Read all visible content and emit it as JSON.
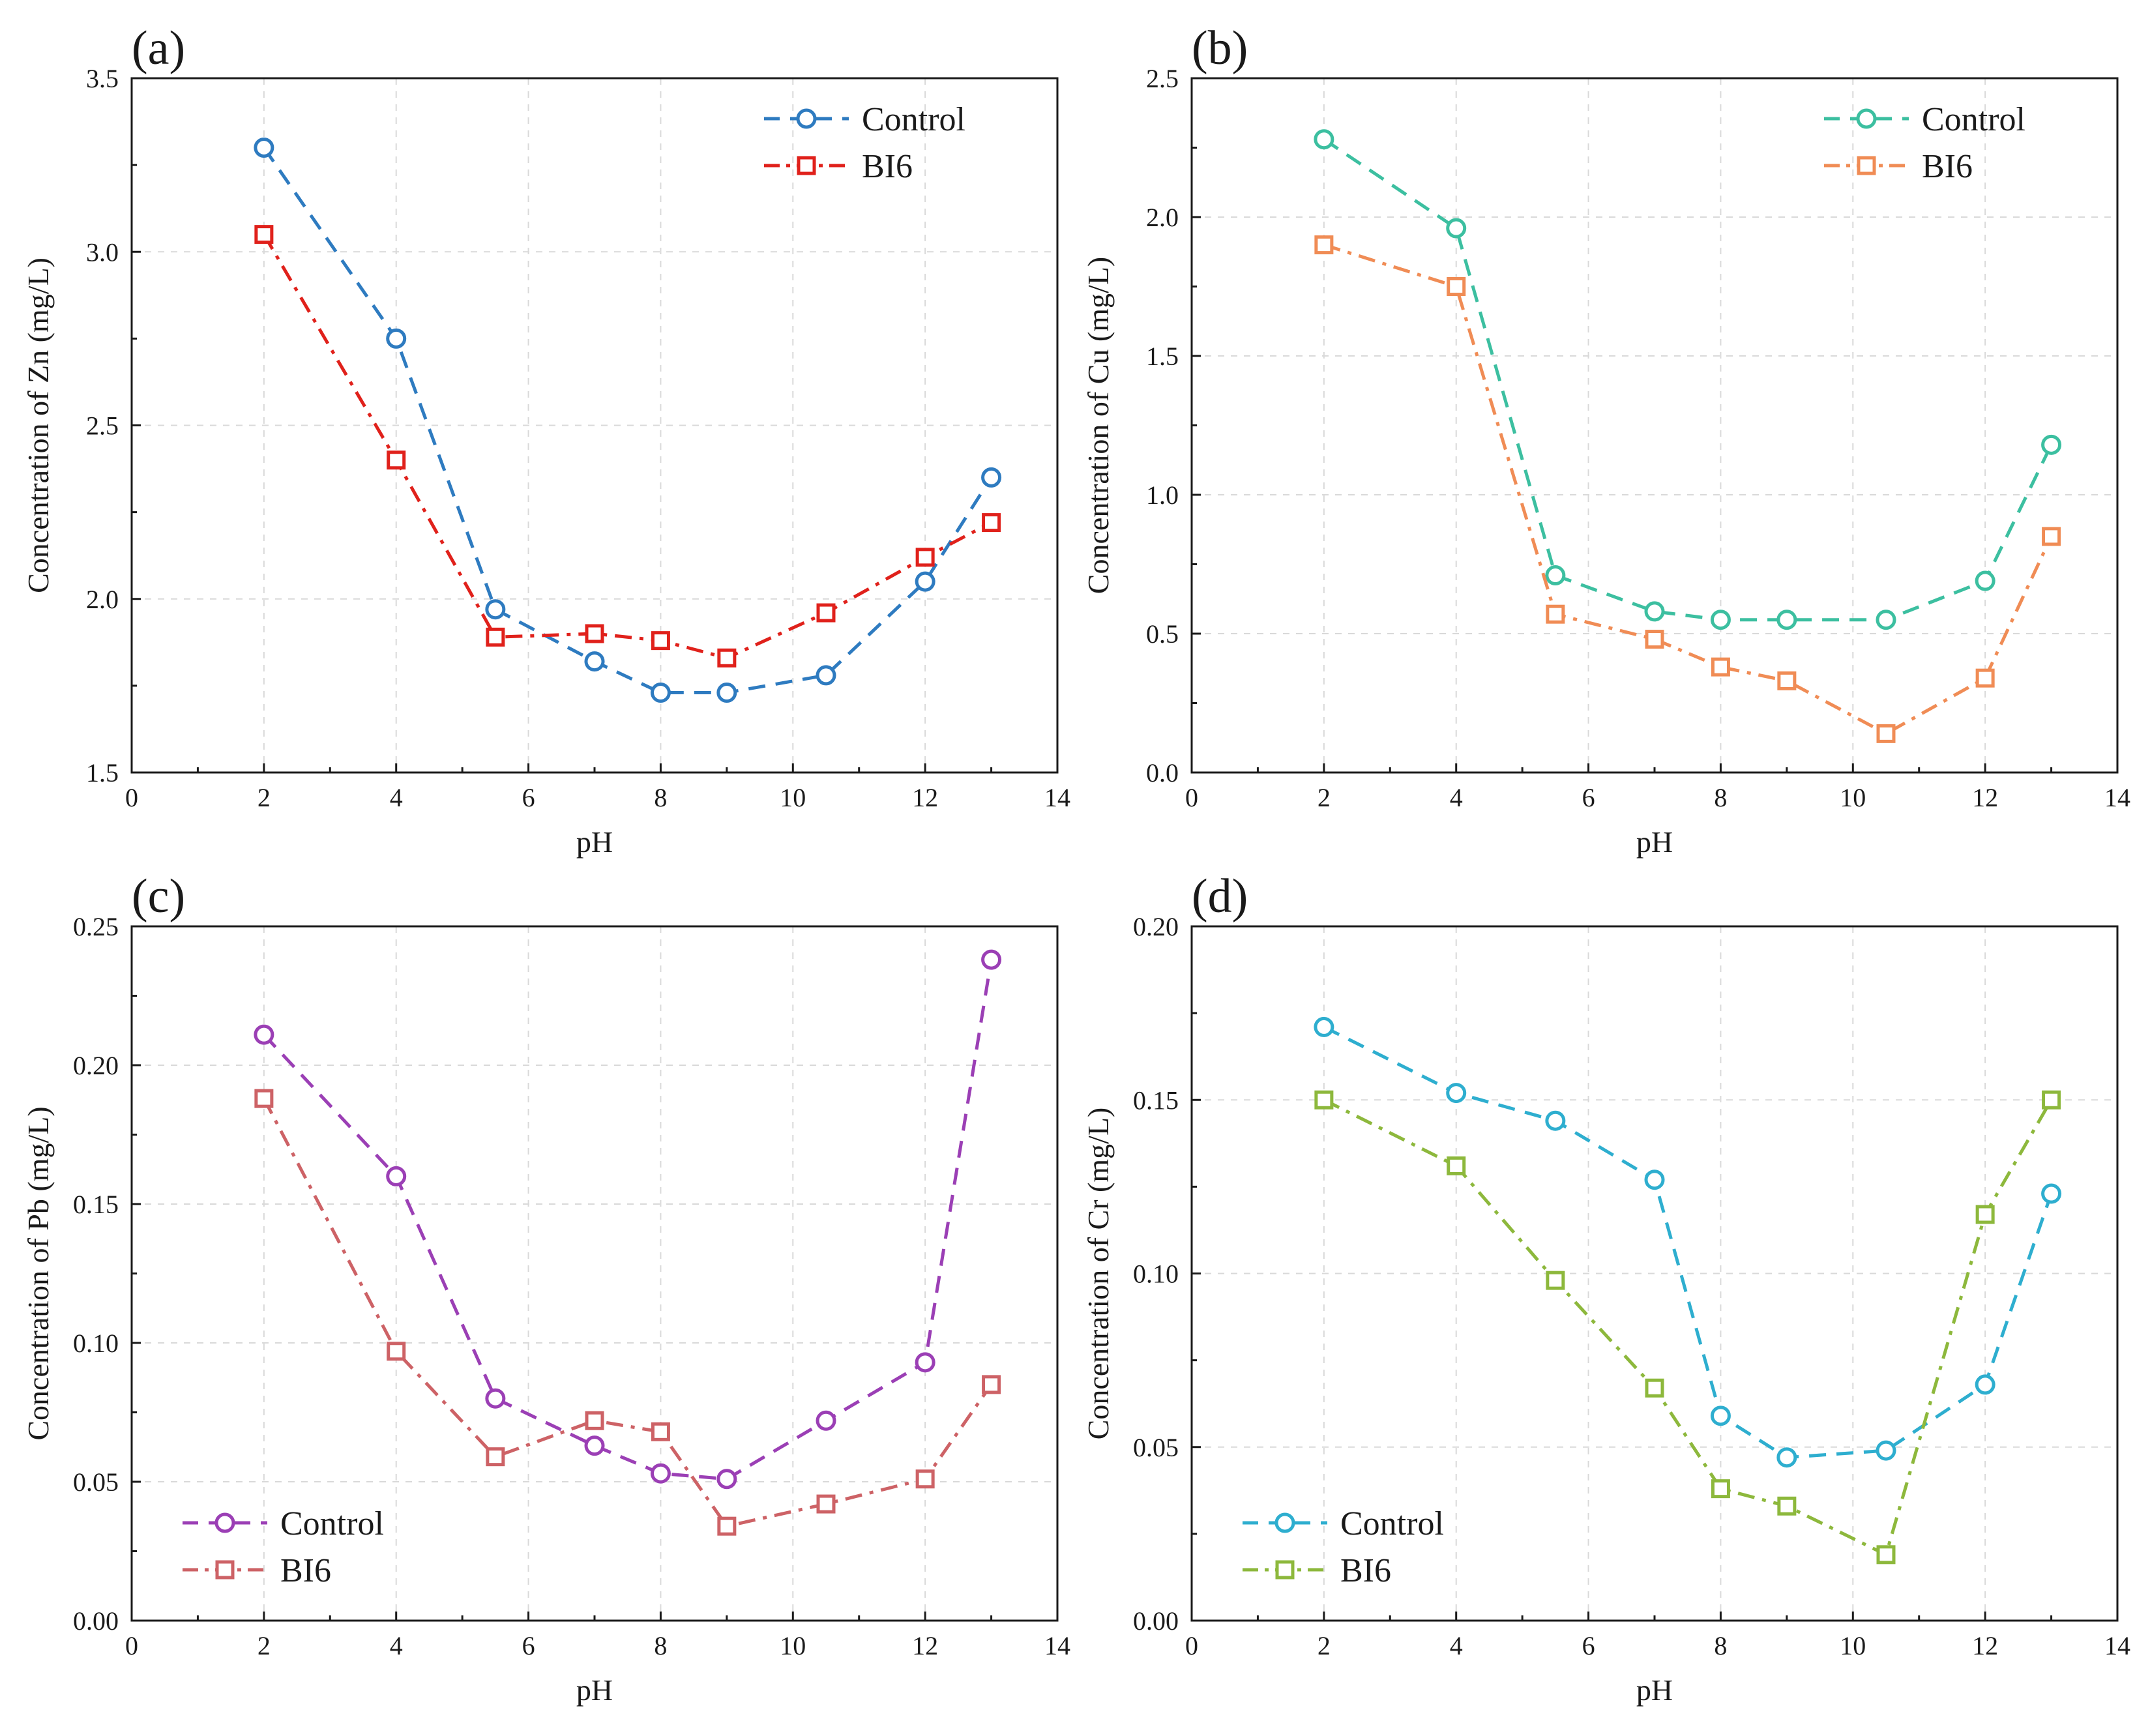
{
  "chart_data": [
    {
      "type": "line",
      "panel_label": "(a)",
      "xlabel": "pH",
      "ylabel": "Concentration of Zn (mg/L)",
      "xlim": [
        0,
        14
      ],
      "ylim": [
        1.5,
        3.5
      ],
      "xticks": [
        "0",
        "2",
        "4",
        "6",
        "8",
        "10",
        "12",
        "14"
      ],
      "yticks": [
        "1.5",
        "2.0",
        "2.5",
        "3.0",
        "3.5"
      ],
      "grid": true,
      "legend_position": "top-right",
      "series": [
        {
          "name": "Control",
          "marker": "circle",
          "line_style": "dash",
          "color": "#2e7bc0",
          "x": [
            2,
            4,
            5.5,
            7,
            8,
            9,
            10.5,
            12,
            13
          ],
          "values": [
            3.3,
            2.75,
            1.97,
            1.82,
            1.73,
            1.73,
            1.78,
            2.05,
            2.35
          ]
        },
        {
          "name": "BI6",
          "marker": "square",
          "line_style": "dashdot",
          "color": "#e0211b",
          "x": [
            2,
            4,
            5.5,
            7,
            8,
            9,
            10.5,
            12,
            13
          ],
          "values": [
            3.05,
            2.4,
            1.89,
            1.9,
            1.88,
            1.83,
            1.96,
            2.12,
            2.22
          ]
        }
      ]
    },
    {
      "type": "line",
      "panel_label": "(b)",
      "xlabel": "pH",
      "ylabel": "Concentration of Cu (mg/L)",
      "xlim": [
        0,
        14
      ],
      "ylim": [
        0,
        2.5
      ],
      "xticks": [
        "0",
        "2",
        "4",
        "6",
        "8",
        "10",
        "12",
        "14"
      ],
      "yticks": [
        "0.0",
        "0.5",
        "1.0",
        "1.5",
        "2.0",
        "2.5"
      ],
      "grid": true,
      "legend_position": "top-right",
      "series": [
        {
          "name": "Control",
          "marker": "circle",
          "line_style": "dash",
          "color": "#3cbfa0",
          "x": [
            2,
            4,
            5.5,
            7,
            8,
            9,
            10.5,
            12,
            13
          ],
          "values": [
            2.28,
            1.96,
            0.71,
            0.58,
            0.55,
            0.55,
            0.55,
            0.69,
            1.18
          ]
        },
        {
          "name": "BI6",
          "marker": "square",
          "line_style": "dashdot",
          "color": "#f08c55",
          "x": [
            2,
            4,
            5.5,
            7,
            8,
            9,
            10.5,
            12,
            13
          ],
          "values": [
            1.9,
            1.75,
            0.57,
            0.48,
            0.38,
            0.33,
            0.14,
            0.34,
            0.85
          ]
        }
      ]
    },
    {
      "type": "line",
      "panel_label": "(c)",
      "xlabel": "pH",
      "ylabel": "Concentration of Pb (mg/L)",
      "xlim": [
        0,
        14
      ],
      "ylim": [
        0,
        0.25
      ],
      "xticks": [
        "0",
        "2",
        "4",
        "6",
        "8",
        "10",
        "12",
        "14"
      ],
      "yticks": [
        "0.00",
        "0.05",
        "0.10",
        "0.15",
        "0.20",
        "0.25"
      ],
      "grid": true,
      "legend_position": "bottom-left",
      "series": [
        {
          "name": "Control",
          "marker": "circle",
          "line_style": "dash",
          "color": "#9b3fb5",
          "x": [
            2,
            4,
            5.5,
            7,
            8,
            9,
            10.5,
            12,
            13
          ],
          "values": [
            0.211,
            0.16,
            0.08,
            0.063,
            0.053,
            0.051,
            0.072,
            0.093,
            0.238
          ]
        },
        {
          "name": "BI6",
          "marker": "square",
          "line_style": "dashdot",
          "color": "#cd6266",
          "x": [
            2,
            4,
            5.5,
            7,
            8,
            9,
            10.5,
            12,
            13
          ],
          "values": [
            0.188,
            0.097,
            0.059,
            0.072,
            0.068,
            0.034,
            0.042,
            0.051,
            0.085
          ]
        }
      ]
    },
    {
      "type": "line",
      "panel_label": "(d)",
      "xlabel": "pH",
      "ylabel": "Concentration of Cr (mg/L)",
      "xlim": [
        0,
        14
      ],
      "ylim": [
        0,
        0.2
      ],
      "xticks": [
        "0",
        "2",
        "4",
        "6",
        "8",
        "10",
        "12",
        "14"
      ],
      "yticks": [
        "0.00",
        "0.05",
        "0.10",
        "0.15",
        "0.20"
      ],
      "grid": true,
      "legend_position": "bottom-left",
      "series": [
        {
          "name": "Control",
          "marker": "circle",
          "line_style": "dash",
          "color": "#2eaecf",
          "x": [
            2,
            4,
            5.5,
            7,
            8,
            9,
            10.5,
            12,
            13
          ],
          "values": [
            0.171,
            0.152,
            0.144,
            0.127,
            0.059,
            0.047,
            0.049,
            0.068,
            0.123
          ]
        },
        {
          "name": "BI6",
          "marker": "square",
          "line_style": "dashdot",
          "color": "#8db83c",
          "x": [
            2,
            4,
            5.5,
            7,
            8,
            9,
            10.5,
            12,
            13
          ],
          "values": [
            0.15,
            0.131,
            0.098,
            0.067,
            0.038,
            0.033,
            0.019,
            0.117,
            0.15
          ]
        }
      ]
    }
  ]
}
